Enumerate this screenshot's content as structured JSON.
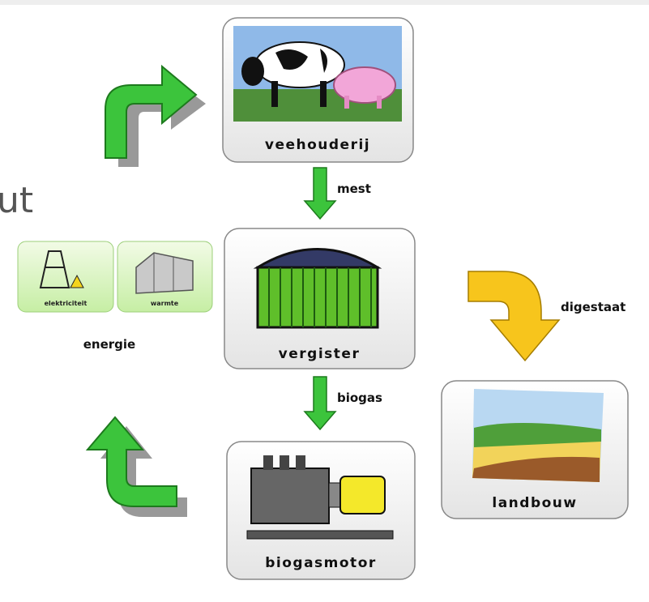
{
  "fragment": "ut",
  "nodes": [
    {
      "label": "veehouderij"
    },
    {
      "label": "vergister"
    },
    {
      "label": "biogasmotor"
    },
    {
      "label": "landbouw"
    }
  ],
  "edges": [
    {
      "label": "mest"
    },
    {
      "label": "biogas"
    },
    {
      "label": "digestaat"
    }
  ],
  "energy": {
    "label": "energie",
    "items": [
      "elektriciteit",
      "warmte"
    ]
  }
}
